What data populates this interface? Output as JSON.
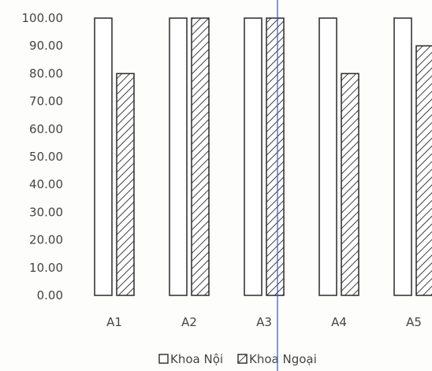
{
  "chart_data": {
    "type": "bar",
    "title": "",
    "xlabel": "",
    "ylabel": "",
    "categories": [
      "A1",
      "A2",
      "A3",
      "A4",
      "A5"
    ],
    "series": [
      {
        "name": "Khoa Nội",
        "values": [
          100,
          100,
          100,
          100,
          100
        ],
        "pattern": "none",
        "fill": "#ffffff"
      },
      {
        "name": "Khoa Ngoại",
        "values": [
          80,
          100,
          100,
          80,
          90
        ],
        "pattern": "diagonal-hatch",
        "fill": "#ffffff"
      }
    ],
    "ylim": [
      0,
      100
    ],
    "yticks": [
      "0.00",
      "10.00",
      "20.00",
      "30.00",
      "40.00",
      "50.00",
      "60.00",
      "70.00",
      "80.00",
      "90.00",
      "100.00"
    ],
    "grid": false,
    "legend_position": "bottom"
  },
  "colors": {
    "bar_stroke": "#2a2a2a",
    "text": "#444444",
    "background": "#fdfdfb",
    "scan_line": "#3355cc"
  }
}
